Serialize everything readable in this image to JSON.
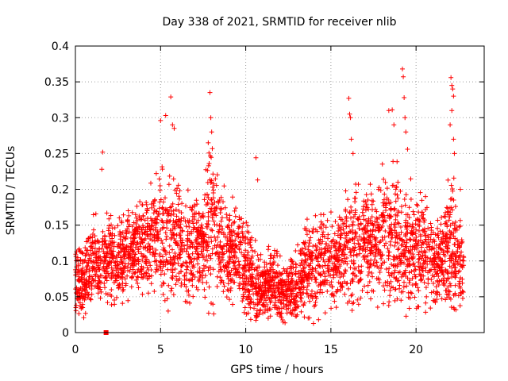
{
  "chart_data": {
    "type": "scatter",
    "title": "Day 338 of 2021, SRMTID for receiver nlib",
    "xlabel": "GPS time / hours",
    "ylabel": "SRMTID / TECUs",
    "xlim": [
      0,
      24
    ],
    "ylim": [
      0,
      0.4
    ],
    "xticks": [
      0,
      5,
      10,
      15,
      20
    ],
    "xtick_labels": [
      "0",
      "5",
      "10",
      "15",
      "20"
    ],
    "yticks": [
      0,
      0.05,
      0.1,
      0.15,
      0.2,
      0.25,
      0.3,
      0.35,
      0.4
    ],
    "ytick_labels": [
      "0",
      "0.05",
      "0.1",
      "0.15",
      "0.2",
      "0.25",
      "0.3",
      "0.35",
      "0.4"
    ],
    "grid": true,
    "marker": "plus",
    "color": "#ff0000",
    "gap_marker": {
      "x": 1.8,
      "y": 0
    },
    "envelope": {
      "x": [
        0,
        0.5,
        1,
        1.5,
        2,
        2.5,
        3,
        3.5,
        4,
        4.5,
        5,
        5.5,
        6,
        6.5,
        7,
        7.5,
        8,
        8.5,
        9,
        9.5,
        10,
        10.5,
        11,
        11.5,
        12,
        12.5,
        13,
        13.5,
        14,
        14.5,
        15,
        15.5,
        16,
        16.5,
        17,
        17.5,
        18,
        18.5,
        19,
        19.5,
        20,
        20.5,
        21,
        21.5,
        22,
        22.5,
        22.8
      ],
      "center": [
        0.08,
        0.07,
        0.1,
        0.09,
        0.11,
        0.1,
        0.11,
        0.11,
        0.12,
        0.13,
        0.14,
        0.13,
        0.12,
        0.11,
        0.13,
        0.13,
        0.16,
        0.12,
        0.11,
        0.11,
        0.09,
        0.07,
        0.06,
        0.07,
        0.06,
        0.06,
        0.06,
        0.09,
        0.09,
        0.1,
        0.1,
        0.11,
        0.12,
        0.12,
        0.13,
        0.12,
        0.14,
        0.13,
        0.13,
        0.12,
        0.11,
        0.12,
        0.1,
        0.1,
        0.12,
        0.1,
        0.08
      ],
      "spread": [
        0.04,
        0.04,
        0.05,
        0.04,
        0.05,
        0.05,
        0.05,
        0.05,
        0.05,
        0.06,
        0.07,
        0.07,
        0.06,
        0.06,
        0.06,
        0.06,
        0.08,
        0.06,
        0.05,
        0.05,
        0.05,
        0.04,
        0.03,
        0.04,
        0.03,
        0.03,
        0.04,
        0.05,
        0.05,
        0.05,
        0.05,
        0.05,
        0.07,
        0.06,
        0.06,
        0.06,
        0.07,
        0.07,
        0.08,
        0.06,
        0.06,
        0.06,
        0.05,
        0.05,
        0.08,
        0.06,
        0.04
      ],
      "points_per_hour": 150
    },
    "outliers": [
      {
        "x": 1.6,
        "y": 0.252
      },
      {
        "x": 1.55,
        "y": 0.228
      },
      {
        "x": 5.0,
        "y": 0.296
      },
      {
        "x": 5.3,
        "y": 0.303
      },
      {
        "x": 5.6,
        "y": 0.329
      },
      {
        "x": 5.7,
        "y": 0.29
      },
      {
        "x": 5.8,
        "y": 0.285
      },
      {
        "x": 7.9,
        "y": 0.335
      },
      {
        "x": 7.95,
        "y": 0.3
      },
      {
        "x": 8.0,
        "y": 0.28
      },
      {
        "x": 7.8,
        "y": 0.265
      },
      {
        "x": 10.6,
        "y": 0.244
      },
      {
        "x": 10.7,
        "y": 0.213
      },
      {
        "x": 16.05,
        "y": 0.327
      },
      {
        "x": 16.1,
        "y": 0.305
      },
      {
        "x": 16.15,
        "y": 0.3
      },
      {
        "x": 16.2,
        "y": 0.27
      },
      {
        "x": 16.3,
        "y": 0.25
      },
      {
        "x": 18.4,
        "y": 0.31
      },
      {
        "x": 18.6,
        "y": 0.311
      },
      {
        "x": 18.7,
        "y": 0.29
      },
      {
        "x": 19.2,
        "y": 0.368
      },
      {
        "x": 19.25,
        "y": 0.357
      },
      {
        "x": 19.3,
        "y": 0.328
      },
      {
        "x": 19.35,
        "y": 0.3
      },
      {
        "x": 19.4,
        "y": 0.28
      },
      {
        "x": 19.5,
        "y": 0.256
      },
      {
        "x": 22.05,
        "y": 0.356
      },
      {
        "x": 22.1,
        "y": 0.345
      },
      {
        "x": 22.15,
        "y": 0.34
      },
      {
        "x": 22.2,
        "y": 0.33
      },
      {
        "x": 22.1,
        "y": 0.31
      },
      {
        "x": 22.0,
        "y": 0.29
      },
      {
        "x": 22.2,
        "y": 0.27
      },
      {
        "x": 22.25,
        "y": 0.25
      },
      {
        "x": 22.6,
        "y": 0.2
      }
    ]
  }
}
